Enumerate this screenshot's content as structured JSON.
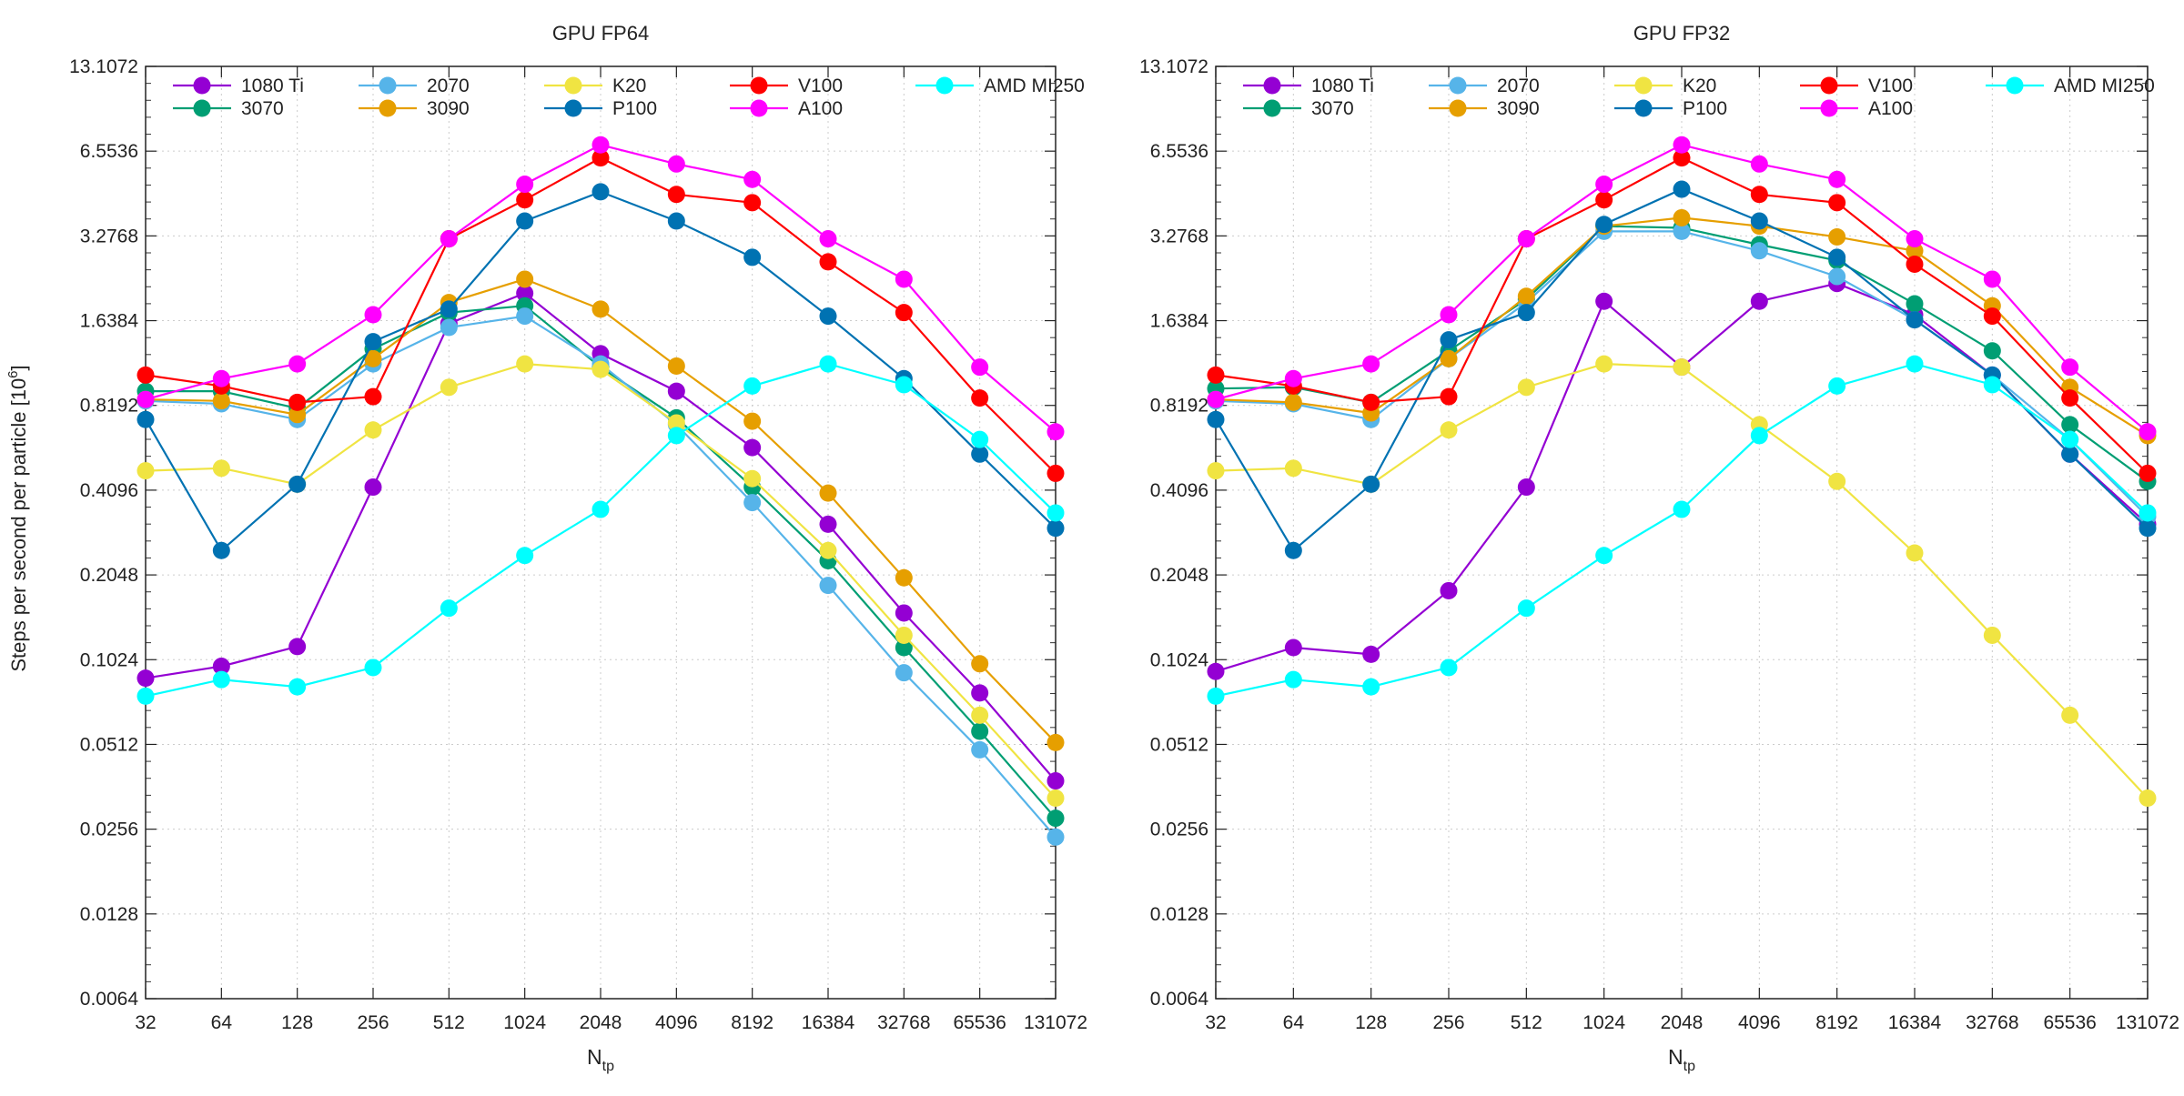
{
  "ylabel_main": "Steps per second per particle [10",
  "ylabel_sup": "6",
  "ylabel_end": "]",
  "xlabel_main": "N",
  "xlabel_sub": "tp",
  "y_ticks": [
    "0.0064",
    "0.0128",
    "0.0256",
    "0.0512",
    "0.1024",
    "0.2048",
    "0.4096",
    "0.8192",
    "1.6384",
    "3.2768",
    "6.5536",
    "13.1072"
  ],
  "x_ticks": [
    "32",
    "64",
    "128",
    "256",
    "512",
    "1024",
    "2048",
    "4096",
    "8192",
    "16384",
    "32768",
    "65536",
    "131072"
  ],
  "chart_data": [
    {
      "type": "line",
      "title": "GPU FP64",
      "xscale": "log2",
      "yscale": "log2",
      "ylim": [
        0.0064,
        13.1072
      ],
      "x": [
        32,
        64,
        128,
        256,
        512,
        1024,
        2048,
        4096,
        8192,
        16384,
        32768,
        65536,
        131072
      ],
      "series": [
        {
          "name": "1080 Ti",
          "color": "#9400d3",
          "values": [
            0.088,
            0.097,
            0.114,
            0.42,
            1.6,
            2.05,
            1.25,
            0.92,
            0.58,
            0.31,
            0.15,
            0.078,
            0.038
          ]
        },
        {
          "name": "3070",
          "color": "#009e73",
          "values": [
            0.92,
            0.92,
            0.8,
            1.3,
            1.75,
            1.85,
            1.12,
            0.74,
            0.42,
            0.23,
            0.113,
            0.057,
            0.028
          ]
        },
        {
          "name": "2070",
          "color": "#56b4e9",
          "values": [
            0.85,
            0.83,
            0.73,
            1.15,
            1.55,
            1.7,
            1.15,
            0.7,
            0.37,
            0.188,
            0.092,
            0.049,
            0.024
          ]
        },
        {
          "name": "3090",
          "color": "#e69f00",
          "values": [
            0.86,
            0.85,
            0.76,
            1.2,
            1.9,
            2.3,
            1.8,
            1.13,
            0.72,
            0.4,
            0.2,
            0.099,
            0.052
          ]
        },
        {
          "name": "K20",
          "color": "#f0e442",
          "values": [
            0.48,
            0.49,
            0.43,
            0.67,
            0.95,
            1.15,
            1.1,
            0.71,
            0.45,
            0.25,
            0.125,
            0.065,
            0.033
          ]
        },
        {
          "name": "P100",
          "color": "#0072b2",
          "values": [
            0.73,
            0.25,
            0.43,
            1.38,
            1.8,
            3.7,
            4.7,
            3.7,
            2.75,
            1.7,
            1.02,
            0.55,
            0.3
          ]
        },
        {
          "name": "V100",
          "color": "#ff0000",
          "values": [
            1.05,
            0.96,
            0.84,
            0.88,
            3.2,
            4.4,
            6.2,
            4.6,
            4.3,
            2.65,
            1.75,
            0.87,
            0.47
          ]
        },
        {
          "name": "A100",
          "color": "#ff00ff",
          "values": [
            0.86,
            1.02,
            1.15,
            1.72,
            3.2,
            5.0,
            6.9,
            5.9,
            5.2,
            3.2,
            2.3,
            1.12,
            0.66
          ]
        },
        {
          "name": "AMD MI250",
          "color": "#00ffff",
          "values": [
            0.076,
            0.087,
            0.082,
            0.096,
            0.156,
            0.24,
            0.35,
            0.64,
            0.96,
            1.15,
            0.97,
            0.62,
            0.34
          ]
        }
      ]
    },
    {
      "type": "line",
      "title": "GPU FP32",
      "xscale": "log2",
      "yscale": "log2",
      "ylim": [
        0.0064,
        13.1072
      ],
      "x": [
        32,
        64,
        128,
        256,
        512,
        1024,
        2048,
        4096,
        8192,
        16384,
        32768,
        65536,
        131072
      ],
      "series": [
        {
          "name": "1080 Ti",
          "color": "#9400d3",
          "values": [
            0.093,
            0.113,
            0.107,
            0.18,
            0.42,
            1.92,
            1.12,
            1.92,
            2.22,
            1.72,
            1.05,
            0.55,
            0.31
          ]
        },
        {
          "name": "3070",
          "color": "#009e73",
          "values": [
            0.94,
            0.95,
            0.84,
            1.28,
            1.95,
            3.55,
            3.5,
            3.05,
            2.68,
            1.88,
            1.28,
            0.7,
            0.44
          ]
        },
        {
          "name": "2070",
          "color": "#56b4e9",
          "values": [
            0.85,
            0.83,
            0.73,
            1.2,
            1.9,
            3.4,
            3.4,
            2.9,
            2.35,
            1.65,
            1.05,
            0.62,
            0.33
          ]
        },
        {
          "name": "3090",
          "color": "#e69f00",
          "values": [
            0.86,
            0.84,
            0.77,
            1.2,
            2.0,
            3.55,
            3.8,
            3.55,
            3.25,
            2.9,
            1.85,
            0.95,
            0.64
          ]
        },
        {
          "name": "K20",
          "color": "#f0e442",
          "values": [
            0.48,
            0.49,
            0.43,
            0.67,
            0.95,
            1.15,
            1.12,
            0.7,
            0.44,
            0.245,
            0.125,
            0.065,
            0.033
          ]
        },
        {
          "name": "P100",
          "color": "#0072b2",
          "values": [
            0.73,
            0.25,
            0.43,
            1.4,
            1.75,
            3.6,
            4.8,
            3.7,
            2.75,
            1.65,
            1.05,
            0.55,
            0.3
          ]
        },
        {
          "name": "V100",
          "color": "#ff0000",
          "values": [
            1.05,
            0.96,
            0.84,
            0.88,
            3.2,
            4.4,
            6.2,
            4.6,
            4.3,
            2.6,
            1.7,
            0.87,
            0.47
          ]
        },
        {
          "name": "A100",
          "color": "#ff00ff",
          "values": [
            0.86,
            1.02,
            1.15,
            1.72,
            3.2,
            5.0,
            6.9,
            5.9,
            5.2,
            3.2,
            2.3,
            1.12,
            0.66
          ]
        },
        {
          "name": "AMD MI250",
          "color": "#00ffff",
          "values": [
            0.076,
            0.087,
            0.082,
            0.096,
            0.156,
            0.24,
            0.35,
            0.64,
            0.96,
            1.15,
            0.97,
            0.62,
            0.34
          ]
        }
      ]
    }
  ]
}
